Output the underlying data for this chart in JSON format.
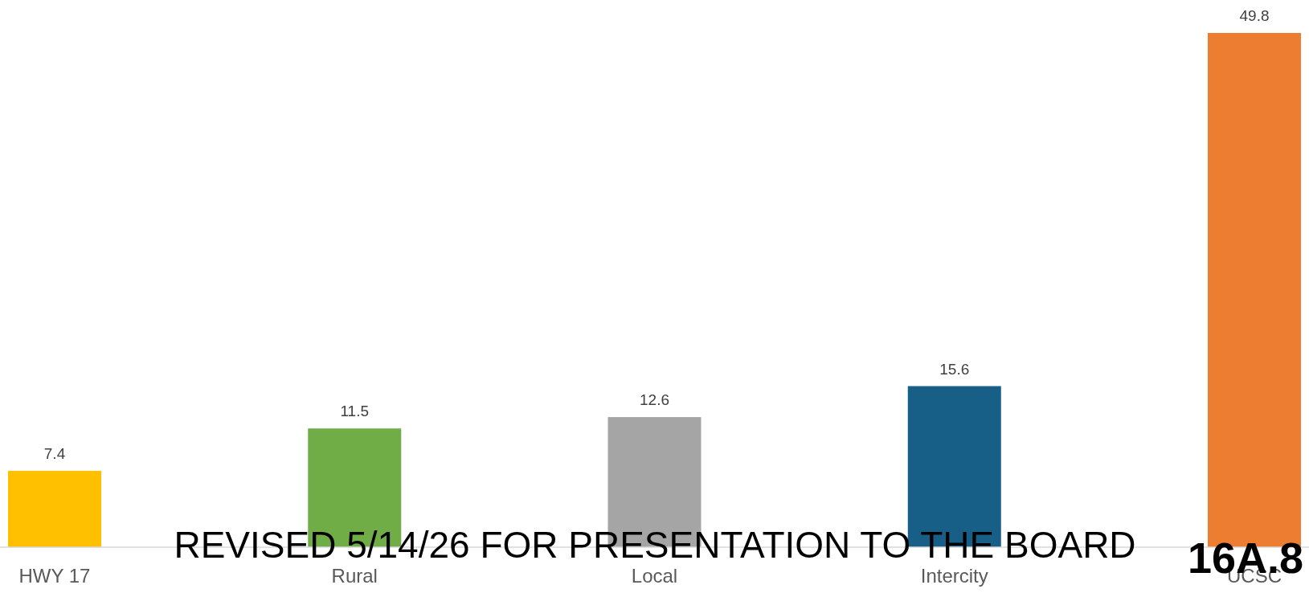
{
  "chart_data": {
    "type": "bar",
    "categories": [
      "HWY 17",
      "Rural",
      "Local",
      "Intercity",
      "UCSC"
    ],
    "values": [
      7.4,
      11.5,
      12.6,
      15.6,
      49.8
    ],
    "colors": [
      "#ffc000",
      "#70ad47",
      "#a5a5a5",
      "#185f87",
      "#ed7d31"
    ],
    "data_labels": true,
    "annotations": [
      "REVISED 5/14/26 FOR PRESENTATION TO THE BOARD",
      "16A.8"
    ]
  }
}
